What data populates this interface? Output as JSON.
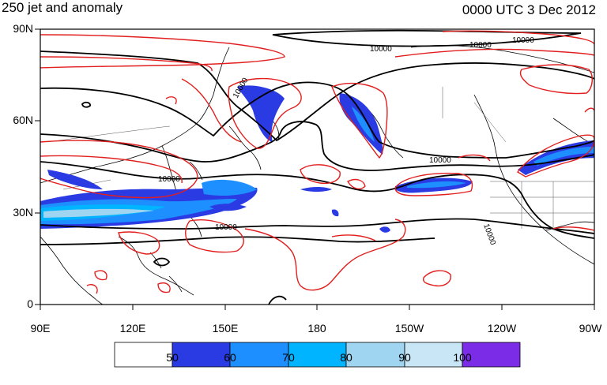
{
  "title": "250 jet and anomaly",
  "time_label": "0000 UTC 3 Dec 2012",
  "lat_labels": [
    "90N",
    "60N",
    "30N",
    "0"
  ],
  "lon_labels": [
    "90E",
    "120E",
    "150E",
    "180",
    "150W",
    "120W",
    "90W"
  ],
  "contour_label": "10000",
  "colorbar": {
    "colors": [
      "#ffffff",
      "#2a3be4",
      "#1e8fff",
      "#00b4ff",
      "#9fd5f0",
      "#c8e6f6",
      "#7b2ce6"
    ],
    "labels": [
      "50",
      "60",
      "70",
      "80",
      "90",
      "100"
    ]
  },
  "colors": {
    "height_contour": "#000000",
    "anomaly_contour": "#e21f1f",
    "coastline": "#000000"
  }
}
